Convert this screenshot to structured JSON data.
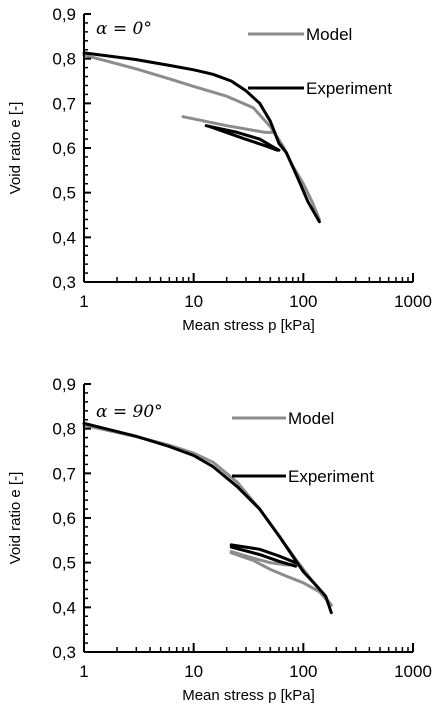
{
  "chart_data": [
    {
      "type": "line",
      "annotation": "α = 0°",
      "xlabel": "Mean stress p   [kPa]",
      "ylabel": "Void ratio  e   [-]",
      "x_scale": "log",
      "xlim": [
        1,
        1000
      ],
      "ylim": [
        0.3,
        0.9
      ],
      "x_ticks": [
        "1",
        "10",
        "100",
        "1000"
      ],
      "y_ticks": [
        "0,3",
        "0,4",
        "0,5",
        "0,6",
        "0,7",
        "0,8",
        "0,9"
      ],
      "grid": false,
      "legend_position": "top-right",
      "series": [
        {
          "name": "Model",
          "color": "#8c8c8c",
          "segments": [
            [
              [
                1,
                0.808
              ],
              [
                3,
                0.777
              ],
              [
                6,
                0.755
              ],
              [
                10,
                0.738
              ],
              [
                20,
                0.716
              ],
              [
                35,
                0.69
              ],
              [
                50,
                0.648
              ],
              [
                65,
                0.605
              ],
              [
                80,
                0.56
              ],
              [
                100,
                0.52
              ],
              [
                120,
                0.48
              ],
              [
                140,
                0.44
              ]
            ],
            [
              [
                8,
                0.67
              ],
              [
                20,
                0.65
              ],
              [
                45,
                0.635
              ],
              [
                55,
                0.635
              ]
            ]
          ]
        },
        {
          "name": "Experiment",
          "color": "#000000",
          "segments": [
            [
              [
                1,
                0.813
              ],
              [
                3,
                0.798
              ],
              [
                6,
                0.785
              ],
              [
                10,
                0.775
              ],
              [
                15,
                0.765
              ],
              [
                22,
                0.75
              ],
              [
                30,
                0.728
              ],
              [
                40,
                0.7
              ],
              [
                50,
                0.66
              ],
              [
                60,
                0.61
              ],
              [
                70,
                0.59
              ],
              [
                90,
                0.53
              ],
              [
                110,
                0.48
              ],
              [
                140,
                0.435
              ]
            ],
            [
              [
                13,
                0.65
              ],
              [
                25,
                0.635
              ],
              [
                40,
                0.62
              ],
              [
                55,
                0.6
              ],
              [
                60,
                0.595
              ]
            ],
            [
              [
                14,
                0.648
              ],
              [
                28,
                0.622
              ],
              [
                45,
                0.605
              ],
              [
                58,
                0.595
              ]
            ]
          ]
        }
      ]
    },
    {
      "type": "line",
      "annotation": "α = 90°",
      "xlabel": "Mean stress p   [kPa]",
      "ylabel": "Void ratio  e   [-]",
      "x_scale": "log",
      "xlim": [
        1,
        1000
      ],
      "ylim": [
        0.3,
        0.9
      ],
      "x_ticks": [
        "1",
        "10",
        "100",
        "1000"
      ],
      "y_ticks": [
        "0,3",
        "0,4",
        "0,5",
        "0,6",
        "0,7",
        "0,8",
        "0,9"
      ],
      "grid": false,
      "legend_position": "top-right",
      "series": [
        {
          "name": "Model",
          "color": "#8c8c8c",
          "segments": [
            [
              [
                1,
                0.808
              ],
              [
                3,
                0.782
              ],
              [
                6,
                0.763
              ],
              [
                10,
                0.745
              ],
              [
                15,
                0.725
              ],
              [
                25,
                0.68
              ],
              [
                40,
                0.62
              ],
              [
                60,
                0.56
              ],
              [
                90,
                0.5
              ],
              [
                120,
                0.46
              ],
              [
                180,
                0.405
              ]
            ],
            [
              [
                22,
                0.525
              ],
              [
                35,
                0.51
              ],
              [
                50,
                0.5
              ],
              [
                70,
                0.495
              ],
              [
                90,
                0.495
              ]
            ],
            [
              [
                22,
                0.522
              ],
              [
                35,
                0.505
              ],
              [
                50,
                0.485
              ],
              [
                70,
                0.47
              ],
              [
                100,
                0.455
              ],
              [
                140,
                0.435
              ],
              [
                180,
                0.405
              ]
            ]
          ]
        },
        {
          "name": "Experiment",
          "color": "#000000",
          "segments": [
            [
              [
                1,
                0.812
              ],
              [
                3,
                0.783
              ],
              [
                6,
                0.76
              ],
              [
                10,
                0.74
              ],
              [
                15,
                0.715
              ],
              [
                25,
                0.67
              ],
              [
                40,
                0.62
              ],
              [
                60,
                0.56
              ],
              [
                85,
                0.505
              ],
              [
                100,
                0.48
              ],
              [
                130,
                0.45
              ],
              [
                160,
                0.425
              ],
              [
                180,
                0.388
              ]
            ],
            [
              [
                22,
                0.54
              ],
              [
                40,
                0.53
              ],
              [
                60,
                0.515
              ],
              [
                85,
                0.5
              ]
            ],
            [
              [
                22,
                0.535
              ],
              [
                40,
                0.518
              ],
              [
                60,
                0.503
              ],
              [
                85,
                0.492
              ]
            ]
          ]
        }
      ]
    }
  ]
}
